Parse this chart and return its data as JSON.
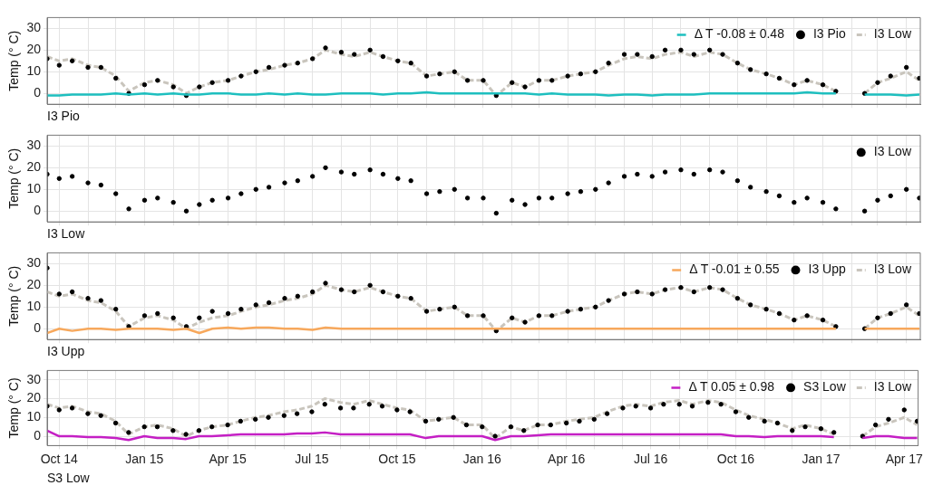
{
  "chart_data": [
    {
      "type": "line",
      "xlabel": "I3 Pio",
      "ylabel": "Temp (° C)",
      "legend": "top right",
      "grid": true,
      "tick_labels": "y",
      "ylim": [
        -5,
        35
      ],
      "yticks": [
        0,
        10,
        20,
        30
      ],
      "xlim": [
        "2014-09-18",
        "2017-04-16"
      ],
      "xticks": [
        {
          "value": "2014-10-01",
          "label": null
        },
        {
          "value": "2014-11-01",
          "label": null
        },
        {
          "value": "2014-12-01",
          "label": null
        },
        {
          "value": "2015-01-01",
          "label": null
        },
        {
          "value": "2015-02-01",
          "label": null
        },
        {
          "value": "2015-03-01",
          "label": null
        },
        {
          "value": "2015-04-01",
          "label": null
        },
        {
          "value": "2015-05-01",
          "label": null
        },
        {
          "value": "2015-06-01",
          "label": null
        },
        {
          "value": "2015-07-01",
          "label": null
        },
        {
          "value": "2015-08-01",
          "label": null
        },
        {
          "value": "2015-09-01",
          "label": null
        },
        {
          "value": "2015-10-01",
          "label": null
        },
        {
          "value": "2015-11-01",
          "label": null
        },
        {
          "value": "2015-12-01",
          "label": null
        },
        {
          "value": "2016-01-01",
          "label": null
        },
        {
          "value": "2016-02-01",
          "label": null
        },
        {
          "value": "2016-03-01",
          "label": null
        },
        {
          "value": "2016-04-01",
          "label": null
        },
        {
          "value": "2016-05-01",
          "label": null
        },
        {
          "value": "2016-06-01",
          "label": null
        },
        {
          "value": "2016-07-01",
          "label": null
        },
        {
          "value": "2016-08-01",
          "label": null
        },
        {
          "value": "2016-09-01",
          "label": null
        },
        {
          "value": "2016-10-01",
          "label": null
        },
        {
          "value": "2016-11-01",
          "label": null
        },
        {
          "value": "2016-12-01",
          "label": null
        },
        {
          "value": "2017-01-01",
          "label": null
        },
        {
          "value": "2017-02-01",
          "label": null
        },
        {
          "value": "2017-03-01",
          "label": null
        },
        {
          "value": "2017-04-01",
          "label": null
        }
      ],
      "x": [
        "2014-09-18",
        "2014-10-01",
        "2014-10-15",
        "2014-11-01",
        "2014-11-15",
        "2014-12-01",
        "2014-12-15",
        "2015-01-01",
        "2015-01-15",
        "2015-02-01",
        "2015-02-15",
        "2015-03-01",
        "2015-03-15",
        "2015-04-01",
        "2015-04-15",
        "2015-05-01",
        "2015-05-15",
        "2015-06-01",
        "2015-06-15",
        "2015-07-01",
        "2015-07-15",
        "2015-08-01",
        "2015-08-15",
        "2015-09-01",
        "2015-09-15",
        "2015-10-01",
        "2015-10-15",
        "2015-11-01",
        "2015-11-15",
        "2015-12-01",
        "2015-12-15",
        "2016-01-01",
        "2016-01-15",
        "2016-02-01",
        "2016-02-15",
        "2016-03-01",
        "2016-03-15",
        "2016-04-01",
        "2016-04-15",
        "2016-05-01",
        "2016-05-15",
        "2016-06-01",
        "2016-06-15",
        "2016-07-01",
        "2016-07-15",
        "2016-08-01",
        "2016-08-15",
        "2016-09-01",
        "2016-09-15",
        "2016-10-01",
        "2016-10-15",
        "2016-11-01",
        "2016-11-15",
        "2016-12-01",
        "2016-12-15",
        "2017-01-01",
        "2017-01-15",
        "2017-02-01",
        "2017-02-15",
        "2017-03-01",
        "2017-03-15",
        "2017-04-01",
        "2017-04-15"
      ],
      "series": [
        {
          "name": "Δ T -0.08 ± 0.48",
          "color": "#1ebfbf",
          "line_style": "solid",
          "values": [
            -1,
            -1,
            -0.5,
            -0.5,
            -0.5,
            0,
            -0.5,
            0,
            -0.5,
            0,
            -0.5,
            -0.5,
            0,
            0,
            -0.5,
            -0.5,
            0,
            -0.5,
            0,
            -0.5,
            -0.5,
            0,
            0,
            0,
            -0.5,
            0,
            0,
            0.5,
            0,
            0,
            0,
            0,
            0,
            0,
            0,
            -0.5,
            0,
            -0.5,
            -0.5,
            -0.5,
            -1,
            -0.5,
            -0.5,
            -1,
            -0.5,
            -0.5,
            -0.5,
            0,
            0,
            0,
            0,
            0,
            0,
            0,
            0.5,
            0,
            0,
            null,
            -0.5,
            -0.5,
            -0.5,
            -1,
            -0.5
          ]
        },
        {
          "name": "I3 Pio",
          "type": "scatter",
          "color": "#000000",
          "marker": "circle",
          "values": [
            16,
            13,
            15,
            12,
            12,
            7,
            0,
            4,
            6,
            3,
            -1,
            3,
            5,
            6,
            8,
            10,
            12,
            13,
            14,
            16,
            21,
            19,
            18,
            20,
            17,
            15,
            14,
            8,
            9,
            10,
            6,
            6,
            -1,
            5,
            3,
            6,
            6,
            8,
            9,
            10,
            14,
            18,
            18,
            17,
            20,
            20,
            18,
            20,
            18,
            14,
            11,
            9,
            7,
            4,
            6,
            4,
            1,
            null,
            0,
            5,
            8,
            12,
            7
          ]
        },
        {
          "name": "I3 Low",
          "type": "line",
          "color": "#c9c5bd",
          "line_style": "dashed",
          "values": [
            17,
            15,
            16,
            13,
            12,
            8,
            1,
            5,
            6,
            4,
            0,
            3,
            5,
            6,
            8,
            10,
            11,
            13,
            14,
            16,
            20,
            18,
            17,
            19,
            17,
            15,
            14,
            8,
            9,
            10,
            6,
            6,
            -1,
            5,
            3,
            6,
            6,
            8,
            9,
            10,
            13,
            16,
            17,
            16,
            18,
            19,
            17,
            19,
            18,
            14,
            11,
            9,
            7,
            4,
            6,
            4,
            1,
            null,
            0,
            5,
            7,
            10,
            6
          ]
        }
      ]
    },
    {
      "type": "line",
      "xlabel": "I3 Low",
      "ylabel": "Temp (° C)",
      "legend": "top right",
      "grid": true,
      "tick_labels": "y",
      "ylim": [
        -5,
        35
      ],
      "yticks": [
        0,
        10,
        20,
        30
      ],
      "xlim": [
        "2014-09-18",
        "2017-04-16"
      ],
      "xticks": [
        {
          "value": "2014-10-01",
          "label": null
        },
        {
          "value": "2014-11-01",
          "label": null
        },
        {
          "value": "2014-12-01",
          "label": null
        },
        {
          "value": "2015-01-01",
          "label": null
        },
        {
          "value": "2015-02-01",
          "label": null
        },
        {
          "value": "2015-03-01",
          "label": null
        },
        {
          "value": "2015-04-01",
          "label": null
        },
        {
          "value": "2015-05-01",
          "label": null
        },
        {
          "value": "2015-06-01",
          "label": null
        },
        {
          "value": "2015-07-01",
          "label": null
        },
        {
          "value": "2015-08-01",
          "label": null
        },
        {
          "value": "2015-09-01",
          "label": null
        },
        {
          "value": "2015-10-01",
          "label": null
        },
        {
          "value": "2015-11-01",
          "label": null
        },
        {
          "value": "2015-12-01",
          "label": null
        },
        {
          "value": "2016-01-01",
          "label": null
        },
        {
          "value": "2016-02-01",
          "label": null
        },
        {
          "value": "2016-03-01",
          "label": null
        },
        {
          "value": "2016-04-01",
          "label": null
        },
        {
          "value": "2016-05-01",
          "label": null
        },
        {
          "value": "2016-06-01",
          "label": null
        },
        {
          "value": "2016-07-01",
          "label": null
        },
        {
          "value": "2016-08-01",
          "label": null
        },
        {
          "value": "2016-09-01",
          "label": null
        },
        {
          "value": "2016-10-01",
          "label": null
        },
        {
          "value": "2016-11-01",
          "label": null
        },
        {
          "value": "2016-12-01",
          "label": null
        },
        {
          "value": "2017-01-01",
          "label": null
        },
        {
          "value": "2017-02-01",
          "label": null
        },
        {
          "value": "2017-03-01",
          "label": null
        },
        {
          "value": "2017-04-01",
          "label": null
        }
      ],
      "x": [
        "2014-09-18",
        "2014-10-01",
        "2014-10-15",
        "2014-11-01",
        "2014-11-15",
        "2014-12-01",
        "2014-12-15",
        "2015-01-01",
        "2015-01-15",
        "2015-02-01",
        "2015-02-15",
        "2015-03-01",
        "2015-03-15",
        "2015-04-01",
        "2015-04-15",
        "2015-05-01",
        "2015-05-15",
        "2015-06-01",
        "2015-06-15",
        "2015-07-01",
        "2015-07-15",
        "2015-08-01",
        "2015-08-15",
        "2015-09-01",
        "2015-09-15",
        "2015-10-01",
        "2015-10-15",
        "2015-11-01",
        "2015-11-15",
        "2015-12-01",
        "2015-12-15",
        "2016-01-01",
        "2016-01-15",
        "2016-02-01",
        "2016-02-15",
        "2016-03-01",
        "2016-03-15",
        "2016-04-01",
        "2016-04-15",
        "2016-05-01",
        "2016-05-15",
        "2016-06-01",
        "2016-06-15",
        "2016-07-01",
        "2016-07-15",
        "2016-08-01",
        "2016-08-15",
        "2016-09-01",
        "2016-09-15",
        "2016-10-01",
        "2016-10-15",
        "2016-11-01",
        "2016-11-15",
        "2016-12-01",
        "2016-12-15",
        "2017-01-01",
        "2017-01-15",
        "2017-02-01",
        "2017-02-15",
        "2017-03-01",
        "2017-03-15",
        "2017-04-01",
        "2017-04-15"
      ],
      "series": [
        {
          "name": "I3 Low",
          "type": "scatter",
          "color": "#000000",
          "marker": "circle",
          "values": [
            17,
            15,
            16,
            13,
            12,
            8,
            1,
            5,
            6,
            4,
            0,
            3,
            5,
            6,
            8,
            10,
            11,
            13,
            14,
            16,
            20,
            18,
            17,
            19,
            17,
            15,
            14,
            8,
            9,
            10,
            6,
            6,
            -1,
            5,
            3,
            6,
            6,
            8,
            9,
            10,
            13,
            16,
            17,
            16,
            18,
            19,
            17,
            19,
            18,
            14,
            11,
            9,
            7,
            4,
            6,
            4,
            1,
            null,
            0,
            5,
            7,
            10,
            6
          ]
        }
      ]
    },
    {
      "type": "line",
      "xlabel": "I3 Upp",
      "ylabel": "Temp (° C)",
      "legend": "top right",
      "grid": true,
      "tick_labels": "y",
      "ylim": [
        -5,
        35
      ],
      "yticks": [
        0,
        10,
        20,
        30
      ],
      "xlim": [
        "2014-09-18",
        "2017-04-16"
      ],
      "xticks": [
        {
          "value": "2014-10-01",
          "label": null
        },
        {
          "value": "2014-11-01",
          "label": null
        },
        {
          "value": "2014-12-01",
          "label": null
        },
        {
          "value": "2015-01-01",
          "label": null
        },
        {
          "value": "2015-02-01",
          "label": null
        },
        {
          "value": "2015-03-01",
          "label": null
        },
        {
          "value": "2015-04-01",
          "label": null
        },
        {
          "value": "2015-05-01",
          "label": null
        },
        {
          "value": "2015-06-01",
          "label": null
        },
        {
          "value": "2015-07-01",
          "label": null
        },
        {
          "value": "2015-08-01",
          "label": null
        },
        {
          "value": "2015-09-01",
          "label": null
        },
        {
          "value": "2015-10-01",
          "label": null
        },
        {
          "value": "2015-11-01",
          "label": null
        },
        {
          "value": "2015-12-01",
          "label": null
        },
        {
          "value": "2016-01-01",
          "label": null
        },
        {
          "value": "2016-02-01",
          "label": null
        },
        {
          "value": "2016-03-01",
          "label": null
        },
        {
          "value": "2016-04-01",
          "label": null
        },
        {
          "value": "2016-05-01",
          "label": null
        },
        {
          "value": "2016-06-01",
          "label": null
        },
        {
          "value": "2016-07-01",
          "label": null
        },
        {
          "value": "2016-08-01",
          "label": null
        },
        {
          "value": "2016-09-01",
          "label": null
        },
        {
          "value": "2016-10-01",
          "label": null
        },
        {
          "value": "2016-11-01",
          "label": null
        },
        {
          "value": "2016-12-01",
          "label": null
        },
        {
          "value": "2017-01-01",
          "label": null
        },
        {
          "value": "2017-02-01",
          "label": null
        },
        {
          "value": "2017-03-01",
          "label": null
        },
        {
          "value": "2017-04-01",
          "label": null
        }
      ],
      "x": [
        "2014-09-18",
        "2014-10-01",
        "2014-10-15",
        "2014-11-01",
        "2014-11-15",
        "2014-12-01",
        "2014-12-15",
        "2015-01-01",
        "2015-01-15",
        "2015-02-01",
        "2015-02-15",
        "2015-03-01",
        "2015-03-15",
        "2015-04-01",
        "2015-04-15",
        "2015-05-01",
        "2015-05-15",
        "2015-06-01",
        "2015-06-15",
        "2015-07-01",
        "2015-07-15",
        "2015-08-01",
        "2015-08-15",
        "2015-09-01",
        "2015-09-15",
        "2015-10-01",
        "2015-10-15",
        "2015-11-01",
        "2015-11-15",
        "2015-12-01",
        "2015-12-15",
        "2016-01-01",
        "2016-01-15",
        "2016-02-01",
        "2016-02-15",
        "2016-03-01",
        "2016-03-15",
        "2016-04-01",
        "2016-04-15",
        "2016-05-01",
        "2016-05-15",
        "2016-06-01",
        "2016-06-15",
        "2016-07-01",
        "2016-07-15",
        "2016-08-01",
        "2016-08-15",
        "2016-09-01",
        "2016-09-15",
        "2016-10-01",
        "2016-10-15",
        "2016-11-01",
        "2016-11-15",
        "2016-12-01",
        "2016-12-15",
        "2017-01-01",
        "2017-01-15",
        "2017-02-01",
        "2017-02-15",
        "2017-03-01",
        "2017-03-15",
        "2017-04-01",
        "2017-04-15"
      ],
      "series": [
        {
          "name": "Δ T -0.01 ± 0.55",
          "color": "#f7a85c",
          "line_style": "solid",
          "values": [
            -2,
            0,
            -1,
            0,
            0,
            -0.5,
            0,
            0,
            0,
            -0.5,
            0,
            -2,
            0,
            0.5,
            0,
            0.5,
            0.5,
            0,
            0,
            -0.5,
            0.5,
            0,
            0,
            0,
            0,
            0,
            0,
            0,
            0,
            0,
            0,
            0,
            0,
            0,
            0,
            0,
            0,
            0,
            0,
            0,
            0,
            0,
            0,
            0,
            0,
            0,
            0,
            0,
            0,
            0,
            0,
            0,
            0,
            0,
            0,
            0,
            0,
            null,
            0,
            0,
            0,
            0,
            0
          ]
        },
        {
          "name": "I3 Upp",
          "type": "scatter",
          "color": "#000000",
          "marker": "circle",
          "values": [
            28,
            16,
            17,
            14,
            13,
            9,
            1,
            6,
            7,
            5,
            1,
            5,
            8,
            7,
            9,
            11,
            12,
            14,
            15,
            17,
            21,
            18,
            17,
            20,
            17,
            15,
            14,
            8,
            9,
            10,
            6,
            6,
            -1,
            5,
            3,
            6,
            6,
            8,
            9,
            10,
            13,
            16,
            17,
            16,
            18,
            19,
            17,
            19,
            18,
            14,
            11,
            9,
            7,
            4,
            6,
            4,
            1,
            null,
            0,
            5,
            7,
            11,
            7
          ]
        },
        {
          "name": "I3 Low",
          "type": "line",
          "color": "#c9c5bd",
          "line_style": "dashed",
          "values": [
            17,
            15,
            16,
            13,
            12,
            8,
            1,
            5,
            6,
            4,
            0,
            3,
            5,
            6,
            8,
            10,
            11,
            13,
            14,
            16,
            20,
            18,
            17,
            19,
            17,
            15,
            14,
            8,
            9,
            10,
            6,
            6,
            -1,
            5,
            3,
            6,
            6,
            8,
            9,
            10,
            13,
            16,
            17,
            16,
            18,
            19,
            17,
            19,
            18,
            14,
            11,
            9,
            7,
            4,
            6,
            4,
            1,
            null,
            0,
            5,
            7,
            10,
            6
          ]
        }
      ]
    },
    {
      "type": "line",
      "xlabel": "S3 Low",
      "ylabel": "Temp (° C)",
      "legend": "top right",
      "grid": true,
      "ylim": [
        -5,
        35
      ],
      "yticks": [
        0,
        10,
        20,
        30
      ],
      "xlim": [
        "2014-09-18",
        "2017-04-16"
      ],
      "xticks": [
        {
          "value": "2014-10-01",
          "label": "Oct 14"
        },
        {
          "value": "2014-11-01",
          "label": null
        },
        {
          "value": "2014-12-01",
          "label": null
        },
        {
          "value": "2015-01-01",
          "label": "Jan 15"
        },
        {
          "value": "2015-02-01",
          "label": null
        },
        {
          "value": "2015-03-01",
          "label": null
        },
        {
          "value": "2015-04-01",
          "label": "Apr 15"
        },
        {
          "value": "2015-05-01",
          "label": null
        },
        {
          "value": "2015-06-01",
          "label": null
        },
        {
          "value": "2015-07-01",
          "label": "Jul 15"
        },
        {
          "value": "2015-08-01",
          "label": null
        },
        {
          "value": "2015-09-01",
          "label": null
        },
        {
          "value": "2015-10-01",
          "label": "Oct 15"
        },
        {
          "value": "2015-11-01",
          "label": null
        },
        {
          "value": "2015-12-01",
          "label": null
        },
        {
          "value": "2016-01-01",
          "label": "Jan 16"
        },
        {
          "value": "2016-02-01",
          "label": null
        },
        {
          "value": "2016-03-01",
          "label": null
        },
        {
          "value": "2016-04-01",
          "label": "Apr 16"
        },
        {
          "value": "2016-05-01",
          "label": null
        },
        {
          "value": "2016-06-01",
          "label": null
        },
        {
          "value": "2016-07-01",
          "label": "Jul 16"
        },
        {
          "value": "2016-08-01",
          "label": null
        },
        {
          "value": "2016-09-01",
          "label": null
        },
        {
          "value": "2016-10-01",
          "label": "Oct 16"
        },
        {
          "value": "2016-11-01",
          "label": null
        },
        {
          "value": "2016-12-01",
          "label": null
        },
        {
          "value": "2017-01-01",
          "label": "Jan 17"
        },
        {
          "value": "2017-02-01",
          "label": null
        },
        {
          "value": "2017-03-01",
          "label": null
        },
        {
          "value": "2017-04-01",
          "label": "Apr 17"
        }
      ],
      "x": [
        "2014-09-18",
        "2014-10-01",
        "2014-10-15",
        "2014-11-01",
        "2014-11-15",
        "2014-12-01",
        "2014-12-15",
        "2015-01-01",
        "2015-01-15",
        "2015-02-01",
        "2015-02-15",
        "2015-03-01",
        "2015-03-15",
        "2015-04-01",
        "2015-04-15",
        "2015-05-01",
        "2015-05-15",
        "2015-06-01",
        "2015-06-15",
        "2015-07-01",
        "2015-07-15",
        "2015-08-01",
        "2015-08-15",
        "2015-09-01",
        "2015-09-15",
        "2015-10-01",
        "2015-10-15",
        "2015-11-01",
        "2015-11-15",
        "2015-12-01",
        "2015-12-15",
        "2016-01-01",
        "2016-01-15",
        "2016-02-01",
        "2016-02-15",
        "2016-03-01",
        "2016-03-15",
        "2016-04-01",
        "2016-04-15",
        "2016-05-01",
        "2016-05-15",
        "2016-06-01",
        "2016-06-15",
        "2016-07-01",
        "2016-07-15",
        "2016-08-01",
        "2016-08-15",
        "2016-09-01",
        "2016-09-15",
        "2016-10-01",
        "2016-10-15",
        "2016-11-01",
        "2016-11-15",
        "2016-12-01",
        "2016-12-15",
        "2017-01-01",
        "2017-01-15",
        "2017-02-01",
        "2017-02-15",
        "2017-03-01",
        "2017-03-15",
        "2017-04-01",
        "2017-04-15"
      ],
      "series": [
        {
          "name": "Δ T 0.05 ± 0.98",
          "color": "#c41fc4",
          "line_style": "solid",
          "values": [
            3,
            0,
            0,
            -0.5,
            -0.5,
            -1,
            -2,
            0,
            -1,
            -1,
            -1.5,
            0,
            0,
            0.5,
            1,
            1,
            1,
            1,
            1.5,
            1.5,
            2,
            1,
            1,
            1,
            1,
            1,
            1,
            -1,
            0,
            0,
            0,
            0,
            -2,
            0,
            0,
            0.5,
            1,
            1,
            1,
            1,
            1,
            1,
            1,
            1,
            1,
            1,
            1,
            1,
            1,
            0,
            0,
            -0.5,
            0,
            0,
            0,
            0,
            -0.5,
            null,
            -1,
            0,
            0,
            -1,
            -1
          ]
        },
        {
          "name": "S3 Low",
          "type": "scatter",
          "color": "#000000",
          "marker": "circle",
          "values": [
            16,
            14,
            15,
            12,
            11,
            7,
            2,
            5,
            5,
            3,
            1,
            3,
            5,
            6,
            8,
            9,
            10,
            11,
            12,
            13,
            17,
            15,
            15,
            17,
            16,
            14,
            13,
            8,
            9,
            10,
            6,
            5,
            0,
            5,
            3,
            6,
            6,
            7,
            8,
            9,
            12,
            15,
            16,
            15,
            17,
            17,
            16,
            18,
            17,
            13,
            10,
            8,
            7,
            3,
            5,
            4,
            2,
            null,
            0,
            6,
            9,
            14,
            8
          ]
        },
        {
          "name": "I3 Low",
          "type": "line",
          "color": "#c9c5bd",
          "line_style": "dashed",
          "values": [
            17,
            15,
            16,
            13,
            12,
            8,
            1,
            5,
            6,
            4,
            0,
            3,
            5,
            6,
            8,
            10,
            11,
            13,
            14,
            16,
            20,
            18,
            17,
            19,
            17,
            15,
            14,
            8,
            9,
            10,
            6,
            6,
            -1,
            5,
            3,
            6,
            6,
            8,
            9,
            10,
            13,
            16,
            17,
            16,
            18,
            19,
            17,
            19,
            18,
            14,
            11,
            9,
            7,
            4,
            6,
            4,
            1,
            null,
            0,
            5,
            7,
            10,
            6
          ]
        }
      ]
    }
  ]
}
